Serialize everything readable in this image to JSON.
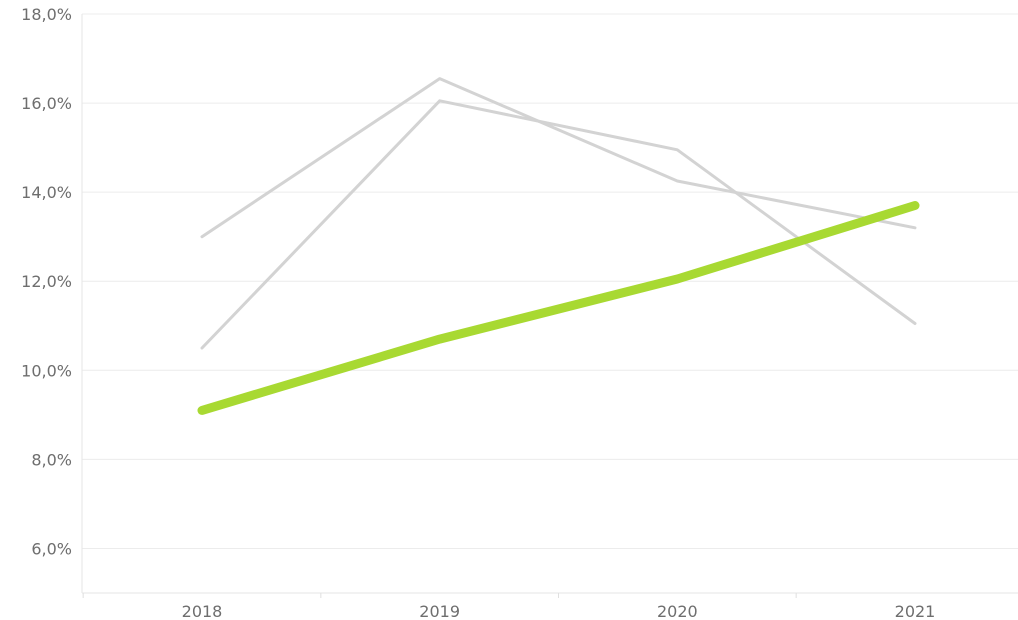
{
  "chart_data": {
    "type": "line",
    "title": "",
    "xlabel": "",
    "ylabel": "",
    "categories": [
      "2018",
      "2019",
      "2020",
      "2021"
    ],
    "ylim": [
      5.0,
      18.0
    ],
    "yticks": [
      6.0,
      8.0,
      10.0,
      12.0,
      14.0,
      16.0,
      18.0
    ],
    "ytick_labels": [
      "6,0%",
      "8,0%",
      "10,0%",
      "12,0%",
      "14,0%",
      "16,0%",
      "18,0%"
    ],
    "grid": true,
    "legend": "none",
    "series": [
      {
        "values": [
          13.0,
          16.55,
          14.25,
          13.2
        ],
        "color": "#d3d3d3",
        "highlight": false
      },
      {
        "values": [
          10.5,
          16.05,
          14.95,
          11.05
        ],
        "color": "#d3d3d3",
        "highlight": false
      },
      {
        "values": [
          9.1,
          10.7,
          12.05,
          13.7
        ],
        "color": "#a8d932",
        "highlight": true
      }
    ]
  }
}
